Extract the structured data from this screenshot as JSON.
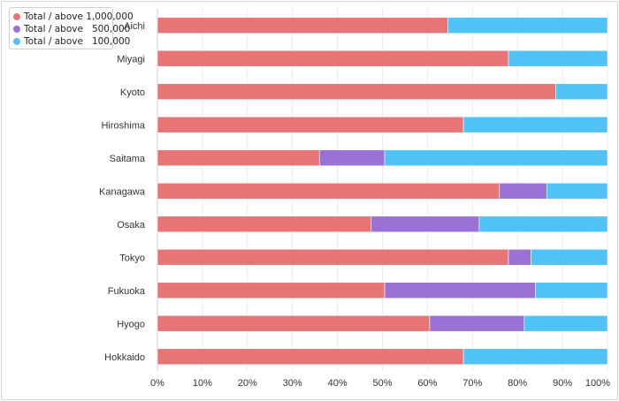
{
  "chart_data": {
    "type": "bar",
    "orientation": "horizontal",
    "stacked": true,
    "title": "",
    "xlabel": "",
    "ylabel": "",
    "xlim": [
      0,
      100
    ],
    "x_ticks": [
      "0%",
      "10%",
      "20%",
      "30%",
      "40%",
      "50%",
      "60%",
      "70%",
      "80%",
      "90%",
      "100%"
    ],
    "categories": [
      "Aichi",
      "Miyagi",
      "Kyoto",
      "Hiroshima",
      "Saitama",
      "Kanagawa",
      "Osaka",
      "Tokyo",
      "Fukuoka",
      "Hyogo",
      "Hokkaido"
    ],
    "series": [
      {
        "name": "Total / above 1,000,000",
        "color": "#e87575",
        "values": [
          64.5,
          78.0,
          88.5,
          68.0,
          36.0,
          76.0,
          47.5,
          78.0,
          50.5,
          60.5,
          68.0
        ]
      },
      {
        "name": "Total / above   500,000",
        "color": "#9a72d6",
        "values": [
          0,
          0,
          0,
          0,
          14.5,
          10.5,
          24.0,
          5.0,
          33.5,
          21.0,
          0
        ]
      },
      {
        "name": "Total / above   100,000",
        "color": "#4fc3f5",
        "values": [
          35.5,
          22.0,
          11.5,
          32.0,
          49.5,
          13.5,
          28.5,
          17.0,
          16.0,
          18.5,
          32.0
        ]
      }
    ],
    "grid": true,
    "legend_position": "top-left"
  }
}
